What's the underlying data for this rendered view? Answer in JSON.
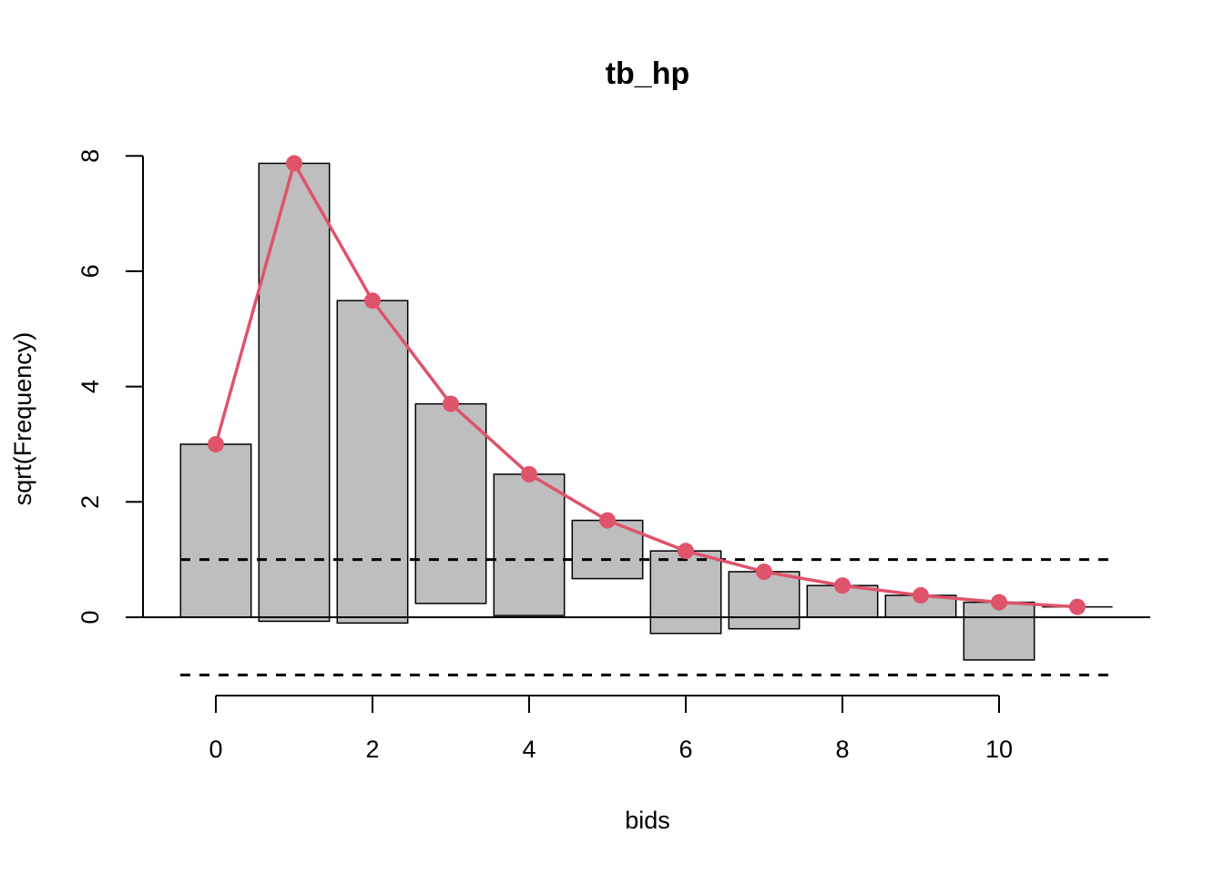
{
  "chart_data": {
    "type": "bar",
    "subtype": "hanging rootogram",
    "title": "tb_hp",
    "xlabel": "bids",
    "ylabel": "sqrt(Frequency)",
    "x": [
      0,
      1,
      2,
      3,
      4,
      5,
      6,
      7,
      8,
      9,
      10,
      11
    ],
    "expected_sqrt_freq": [
      3.0,
      7.87,
      5.49,
      3.7,
      2.48,
      1.68,
      1.15,
      0.79,
      0.55,
      0.38,
      0.26,
      0.18
    ],
    "observed_sqrt_freq": [
      3.0,
      7.94,
      5.59,
      3.46,
      2.45,
      1.01,
      1.43,
      0.99,
      0.55,
      0.38,
      1.0,
      0.0
    ],
    "bar_bottoms": [
      0.0,
      -0.07,
      -0.1,
      0.24,
      0.03,
      0.67,
      -0.28,
      -0.2,
      0.0,
      0.0,
      -0.74,
      0.18
    ],
    "reference_lines": [
      1,
      -1
    ],
    "xlim": [
      -0.5,
      11.5
    ],
    "ylim": [
      -1.2,
      8.3
    ],
    "x_ticks": [
      0,
      2,
      4,
      6,
      8,
      10
    ],
    "y_ticks": [
      0,
      2,
      4,
      6,
      8
    ],
    "colors": {
      "bar_fill": "#BEBEBE",
      "bar_stroke": "#000000",
      "fitted_line": "#DF536B",
      "reference": "#000000"
    }
  }
}
